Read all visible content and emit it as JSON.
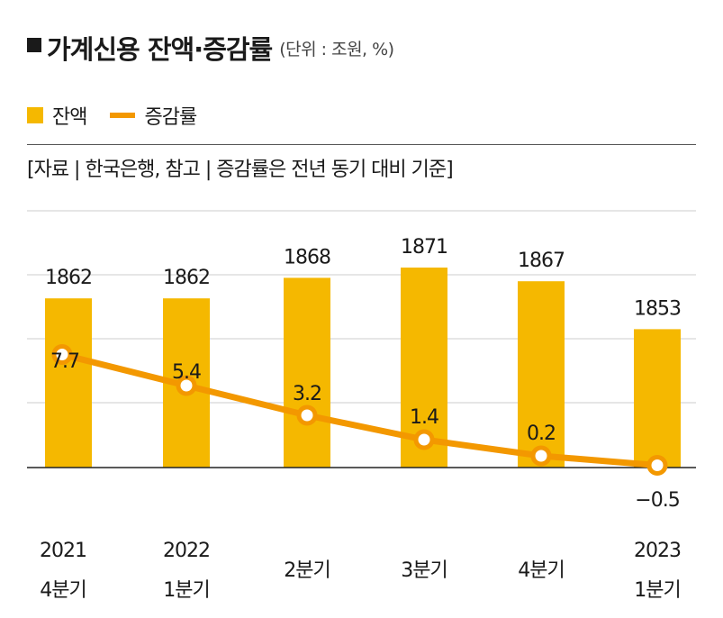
{
  "header": {
    "title": "가계신용 잔액·증감률",
    "unit": "(단위 : 조원, %)"
  },
  "legend": {
    "bar_label": "잔액",
    "line_label": "증감률"
  },
  "source": "[자료 | 한국은행, 참고 | 증감률은 전년 동기 대비 기준]",
  "colors": {
    "bar": "#F5B800",
    "line": "#F39800",
    "grid": "#cccccc",
    "baseline": "#222222"
  },
  "chart_data": {
    "type": "bar",
    "categories": [
      [
        "2021",
        "4분기"
      ],
      [
        "2022",
        "1분기"
      ],
      [
        "",
        "2분기"
      ],
      [
        "",
        "3분기"
      ],
      [
        "",
        "4분기"
      ],
      [
        "2023",
        "1분기"
      ]
    ],
    "series": [
      {
        "name": "잔액",
        "type": "bar",
        "values": [
          1862,
          1862,
          1868,
          1871,
          1867,
          1853
        ],
        "labels": [
          "1862",
          "1862",
          "1868",
          "1871",
          "1867",
          "1853"
        ]
      },
      {
        "name": "증감률",
        "type": "line",
        "values": [
          7.7,
          5.4,
          3.2,
          1.4,
          0.2,
          -0.5
        ],
        "labels": [
          "7.7",
          "5.4",
          "3.2",
          "1.4",
          "0.2",
          "−0.5"
        ]
      }
    ],
    "legend_position": "top-left",
    "grid": true
  }
}
